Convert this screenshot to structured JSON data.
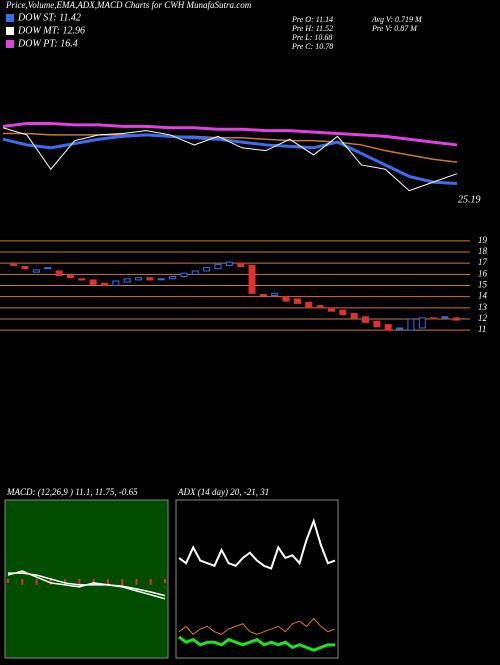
{
  "header": {
    "title": "Price,Volume,EMA,ADX,MACD Charts for CWH MunafaSutra.com",
    "legend": [
      {
        "label": "DOW ST: 11.42",
        "color": "#3a6df0"
      },
      {
        "label": "DOW MT: 12.96",
        "color": "#ffffff"
      },
      {
        "label": "DOW PT: 16.4",
        "color": "#e040e0"
      }
    ],
    "stats": [
      "Pre  O: 11.14",
      "Pre  H: 11.52",
      "Pre  L: 10.68",
      "Pre  C: 10.78",
      "Avg V: 0.719 M",
      "Pre  V: 0.87 M"
    ]
  },
  "chart_data": [
    {
      "type": "line",
      "annotation": "25.19",
      "ylim": [
        23,
        33
      ],
      "series": [
        {
          "color": "#c8783c",
          "values": [
            28.0,
            28.0,
            27.9,
            27.9,
            27.9,
            27.9,
            27.9,
            27.8,
            27.8,
            27.7,
            27.7,
            27.6,
            27.5,
            27.5,
            27.4,
            27.2,
            26.8,
            26.5,
            26.2,
            26.0
          ]
        },
        {
          "color": "#e040e0",
          "width": 3,
          "values": [
            28.5,
            28.7,
            28.7,
            28.6,
            28.6,
            28.5,
            28.5,
            28.4,
            28.4,
            28.3,
            28.3,
            28.2,
            28.2,
            28.1,
            28.0,
            27.9,
            27.8,
            27.6,
            27.4,
            27.2
          ]
        },
        {
          "color": "#3a6df0",
          "width": 3,
          "values": [
            27.6,
            27.2,
            27.0,
            27.3,
            27.6,
            27.8,
            27.9,
            27.8,
            27.7,
            27.6,
            27.4,
            27.2,
            27.1,
            27.0,
            27.4,
            26.6,
            25.8,
            25.0,
            24.6,
            24.5
          ]
        },
        {
          "color": "#ffffff",
          "width": 1,
          "values": [
            28.4,
            27.9,
            25.5,
            27.5,
            27.9,
            28.0,
            28.2,
            27.9,
            27.2,
            27.8,
            27.0,
            26.8,
            27.6,
            26.5,
            27.8,
            25.8,
            25.5,
            24.0,
            24.6,
            25.19
          ]
        }
      ]
    },
    {
      "type": "candlestick",
      "ylim": [
        10.3,
        19.7
      ],
      "yticks": [
        19,
        18,
        17,
        16,
        15,
        14,
        13,
        12,
        11
      ],
      "grid_color": "#c8783c",
      "up_color": "#3a6df0",
      "down_color": "#e03030",
      "open": [
        16.9,
        16.7,
        16.2,
        16.5,
        16.3,
        15.9,
        15.6,
        15.5,
        15.2,
        15.0,
        15.3,
        15.5,
        15.7,
        15.6,
        15.6,
        15.8,
        16.0,
        16.3,
        16.5,
        16.8,
        17.0,
        16.8,
        14.2,
        14.1,
        14.0,
        13.8,
        13.5,
        13.2,
        13.0,
        12.8,
        12.5,
        12.2,
        11.8,
        11.5,
        11.1,
        11.0,
        11.2,
        12.1,
        12.2,
        12.1
      ],
      "close": [
        16.8,
        16.5,
        16.4,
        16.6,
        15.9,
        15.7,
        15.5,
        15.1,
        15.0,
        15.4,
        15.6,
        15.7,
        15.5,
        15.6,
        15.8,
        16.1,
        16.3,
        16.6,
        16.9,
        17.1,
        16.7,
        14.3,
        14.1,
        14.3,
        13.6,
        13.4,
        13.1,
        13.1,
        12.7,
        12.4,
        12.1,
        11.7,
        11.3,
        11.0,
        11.2,
        12.0,
        12.1,
        12.0,
        12.2,
        11.9
      ]
    },
    {
      "type": "line",
      "title": "MACD: (12,26,9 ) 11.1, 11.75, -0.65",
      "ylim": [
        -2,
        2
      ],
      "series": [
        {
          "color": "#e03030",
          "kind": "bar",
          "values": [
            -0.1,
            -0.15,
            -0.15,
            -0.15,
            -0.15,
            -0.15,
            -0.15,
            -0.15,
            -0.15,
            -0.15,
            -0.15,
            -0.1
          ]
        },
        {
          "color": "#ffffff",
          "values": [
            0.15,
            0.15,
            0.1,
            0.0,
            -0.1,
            -0.15,
            -0.15,
            -0.15,
            -0.18,
            -0.25,
            -0.33,
            -0.42
          ]
        },
        {
          "color": "#ffffff",
          "values": [
            0.1,
            0.2,
            0.05,
            -0.1,
            -0.15,
            -0.2,
            -0.1,
            -0.15,
            -0.2,
            -0.3,
            -0.4,
            -0.5
          ]
        }
      ]
    },
    {
      "type": "line",
      "title": "ADX  (14 day) 20, -21, 31",
      "ylim": [
        0,
        60
      ],
      "series": [
        {
          "color": "#ffffff",
          "width": 2,
          "values": [
            38,
            36,
            42,
            37,
            36,
            35,
            41,
            36,
            35,
            38,
            40,
            37,
            35,
            34,
            42,
            38,
            39,
            36,
            45,
            52,
            43,
            36,
            37
          ]
        },
        {
          "color": "#e07820",
          "width": 1,
          "values": [
            10,
            12,
            9,
            11,
            12,
            10,
            9,
            11,
            12,
            13,
            10,
            9,
            10,
            11,
            12,
            10,
            13,
            14,
            12,
            15,
            12,
            10,
            11
          ]
        },
        {
          "color": "#20e020",
          "width": 3,
          "values": [
            8,
            6,
            7,
            5,
            6,
            6,
            5,
            7,
            6,
            5,
            6,
            7,
            5,
            6,
            5,
            6,
            4,
            5,
            4,
            3,
            4,
            5,
            5
          ]
        }
      ]
    }
  ]
}
